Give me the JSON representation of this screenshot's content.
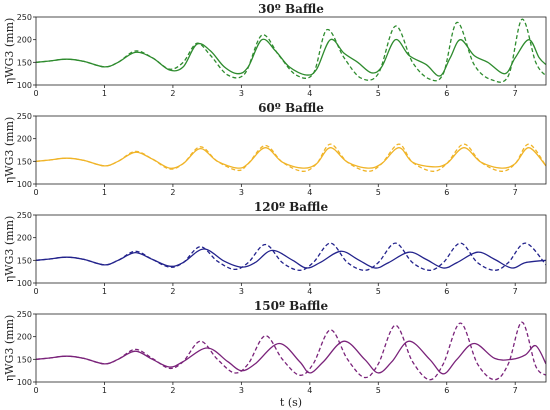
{
  "chart_data": [
    {
      "type": "line",
      "title": "30º Baffle",
      "ylabel": "ηWG3 (mm)",
      "xlim": [
        0,
        7.45
      ],
      "ylim": [
        100,
        250
      ],
      "xticks": [
        0,
        1,
        2,
        3,
        4,
        5,
        6,
        7
      ],
      "yticks": [
        100,
        150,
        200,
        250
      ],
      "series": [
        {
          "style": "solid",
          "color": "#2e8b2e",
          "x": [
            0,
            0.2,
            0.45,
            0.7,
            1.0,
            1.2,
            1.45,
            1.7,
            1.95,
            2.15,
            2.35,
            2.55,
            2.75,
            2.95,
            3.1,
            3.3,
            3.5,
            3.7,
            3.95,
            4.1,
            4.3,
            4.5,
            4.7,
            4.9,
            5.05,
            5.25,
            5.45,
            5.7,
            5.9,
            6.05,
            6.2,
            6.4,
            6.6,
            6.85,
            7.0,
            7.2,
            7.35,
            7.45
          ],
          "y": [
            150,
            153,
            157,
            152,
            140,
            150,
            172,
            160,
            133,
            140,
            190,
            175,
            140,
            125,
            140,
            200,
            175,
            140,
            122,
            135,
            200,
            170,
            150,
            127,
            140,
            200,
            165,
            145,
            120,
            160,
            200,
            165,
            150,
            125,
            160,
            200,
            160,
            145
          ]
        },
        {
          "style": "dashed",
          "color": "#2e8b2e",
          "x": [
            0,
            0.2,
            0.45,
            0.7,
            1.0,
            1.2,
            1.45,
            1.7,
            1.95,
            2.15,
            2.35,
            2.55,
            2.8,
            3.05,
            3.3,
            3.55,
            3.8,
            4.05,
            4.25,
            4.5,
            4.75,
            5.0,
            5.25,
            5.5,
            5.75,
            5.95,
            6.15,
            6.4,
            6.65,
            6.9,
            7.1,
            7.3,
            7.45
          ],
          "y": [
            150,
            153,
            157,
            152,
            140,
            150,
            175,
            160,
            135,
            150,
            192,
            165,
            122,
            125,
            210,
            165,
            122,
            125,
            222,
            160,
            115,
            125,
            230,
            150,
            113,
            125,
            238,
            145,
            112,
            120,
            245,
            150,
            120
          ]
        }
      ]
    },
    {
      "type": "line",
      "title": "60º Baffle",
      "ylabel": "ηWG3 (mm)",
      "xlim": [
        0,
        7.45
      ],
      "ylim": [
        100,
        250
      ],
      "xticks": [
        0,
        1,
        2,
        3,
        4,
        5,
        6,
        7
      ],
      "yticks": [
        100,
        150,
        200,
        250
      ],
      "series": [
        {
          "style": "solid",
          "color": "#f0b428",
          "x": [
            0,
            0.2,
            0.45,
            0.7,
            1.0,
            1.2,
            1.45,
            1.7,
            1.95,
            2.15,
            2.4,
            2.65,
            2.95,
            3.1,
            3.35,
            3.6,
            3.9,
            4.1,
            4.3,
            4.55,
            4.85,
            5.05,
            5.3,
            5.5,
            5.8,
            6.0,
            6.25,
            6.5,
            6.8,
            7.0,
            7.2,
            7.45
          ],
          "y": [
            150,
            153,
            157,
            152,
            140,
            150,
            170,
            155,
            135,
            145,
            178,
            150,
            135,
            145,
            180,
            148,
            135,
            145,
            180,
            148,
            135,
            145,
            180,
            148,
            138,
            145,
            180,
            148,
            135,
            145,
            180,
            140
          ]
        },
        {
          "style": "dashed",
          "color": "#f0b428",
          "x": [
            0,
            0.2,
            0.45,
            0.7,
            1.0,
            1.2,
            1.45,
            1.7,
            1.95,
            2.15,
            2.4,
            2.65,
            2.95,
            3.1,
            3.35,
            3.6,
            3.9,
            4.1,
            4.3,
            4.55,
            4.85,
            5.05,
            5.3,
            5.5,
            5.8,
            6.0,
            6.25,
            6.5,
            6.8,
            7.0,
            7.2,
            7.45
          ],
          "y": [
            150,
            153,
            157,
            152,
            140,
            150,
            172,
            155,
            133,
            145,
            182,
            150,
            130,
            145,
            185,
            148,
            128,
            145,
            188,
            148,
            128,
            145,
            188,
            148,
            128,
            145,
            188,
            148,
            128,
            145,
            188,
            140
          ]
        }
      ]
    },
    {
      "type": "line",
      "title": "120º Baffle",
      "ylabel": "ηWG3 (mm)",
      "xlim": [
        0,
        7.45
      ],
      "ylim": [
        100,
        250
      ],
      "xticks": [
        0,
        1,
        2,
        3,
        4,
        5,
        6,
        7
      ],
      "yticks": [
        100,
        150,
        200,
        250
      ],
      "series": [
        {
          "style": "solid",
          "color": "#23238c",
          "x": [
            0,
            0.2,
            0.45,
            0.7,
            1.0,
            1.2,
            1.45,
            1.7,
            1.95,
            2.15,
            2.45,
            2.75,
            3.0,
            3.2,
            3.45,
            3.75,
            3.95,
            4.15,
            4.45,
            4.7,
            4.95,
            5.15,
            5.45,
            5.7,
            5.95,
            6.15,
            6.45,
            6.7,
            6.95,
            7.15,
            7.45
          ],
          "y": [
            150,
            153,
            157,
            152,
            140,
            150,
            167,
            152,
            137,
            145,
            175,
            148,
            135,
            145,
            172,
            150,
            133,
            145,
            170,
            152,
            133,
            145,
            168,
            152,
            133,
            145,
            168,
            152,
            133,
            145,
            150
          ]
        },
        {
          "style": "dashed",
          "color": "#23238c",
          "x": [
            0,
            0.2,
            0.45,
            0.7,
            1.0,
            1.2,
            1.45,
            1.7,
            1.95,
            2.15,
            2.4,
            2.65,
            2.9,
            3.1,
            3.35,
            3.6,
            3.85,
            4.05,
            4.3,
            4.55,
            4.8,
            5.0,
            5.25,
            5.5,
            5.75,
            5.95,
            6.2,
            6.45,
            6.7,
            6.9,
            7.15,
            7.45
          ],
          "y": [
            150,
            153,
            157,
            152,
            140,
            150,
            170,
            152,
            135,
            145,
            180,
            148,
            130,
            145,
            185,
            145,
            128,
            145,
            188,
            145,
            128,
            145,
            188,
            145,
            128,
            145,
            188,
            145,
            128,
            145,
            188,
            140
          ]
        }
      ]
    },
    {
      "type": "line",
      "title": "150º Baffle",
      "ylabel": "ηWG3 (mm)",
      "xlabel": "t (s)",
      "xlim": [
        0,
        7.45
      ],
      "ylim": [
        100,
        250
      ],
      "xticks": [
        0,
        1,
        2,
        3,
        4,
        5,
        6,
        7
      ],
      "yticks": [
        100,
        150,
        200,
        250
      ],
      "series": [
        {
          "style": "solid",
          "color": "#7a237a",
          "x": [
            0,
            0.2,
            0.45,
            0.7,
            1.0,
            1.2,
            1.45,
            1.7,
            1.95,
            2.15,
            2.5,
            2.8,
            3.0,
            3.2,
            3.55,
            3.85,
            4.0,
            4.2,
            4.5,
            4.8,
            5.0,
            5.2,
            5.45,
            5.75,
            5.95,
            6.15,
            6.4,
            6.7,
            6.95,
            7.15,
            7.3,
            7.45
          ],
          "y": [
            150,
            153,
            157,
            152,
            140,
            150,
            168,
            150,
            133,
            145,
            175,
            145,
            125,
            140,
            185,
            145,
            120,
            145,
            190,
            150,
            120,
            145,
            190,
            150,
            118,
            150,
            185,
            152,
            150,
            160,
            180,
            140
          ]
        },
        {
          "style": "dashed",
          "color": "#7a237a",
          "x": [
            0,
            0.2,
            0.45,
            0.7,
            1.0,
            1.2,
            1.45,
            1.7,
            1.95,
            2.15,
            2.4,
            2.65,
            2.9,
            3.1,
            3.35,
            3.6,
            3.85,
            4.05,
            4.3,
            4.55,
            4.8,
            5.0,
            5.25,
            5.5,
            5.75,
            5.95,
            6.2,
            6.45,
            6.7,
            6.9,
            7.1,
            7.3,
            7.45
          ],
          "y": [
            150,
            153,
            157,
            152,
            140,
            150,
            172,
            152,
            130,
            145,
            190,
            150,
            120,
            140,
            202,
            150,
            115,
            140,
            215,
            150,
            110,
            140,
            225,
            145,
            105,
            140,
            230,
            140,
            105,
            140,
            232,
            135,
            115
          ]
        }
      ]
    }
  ]
}
